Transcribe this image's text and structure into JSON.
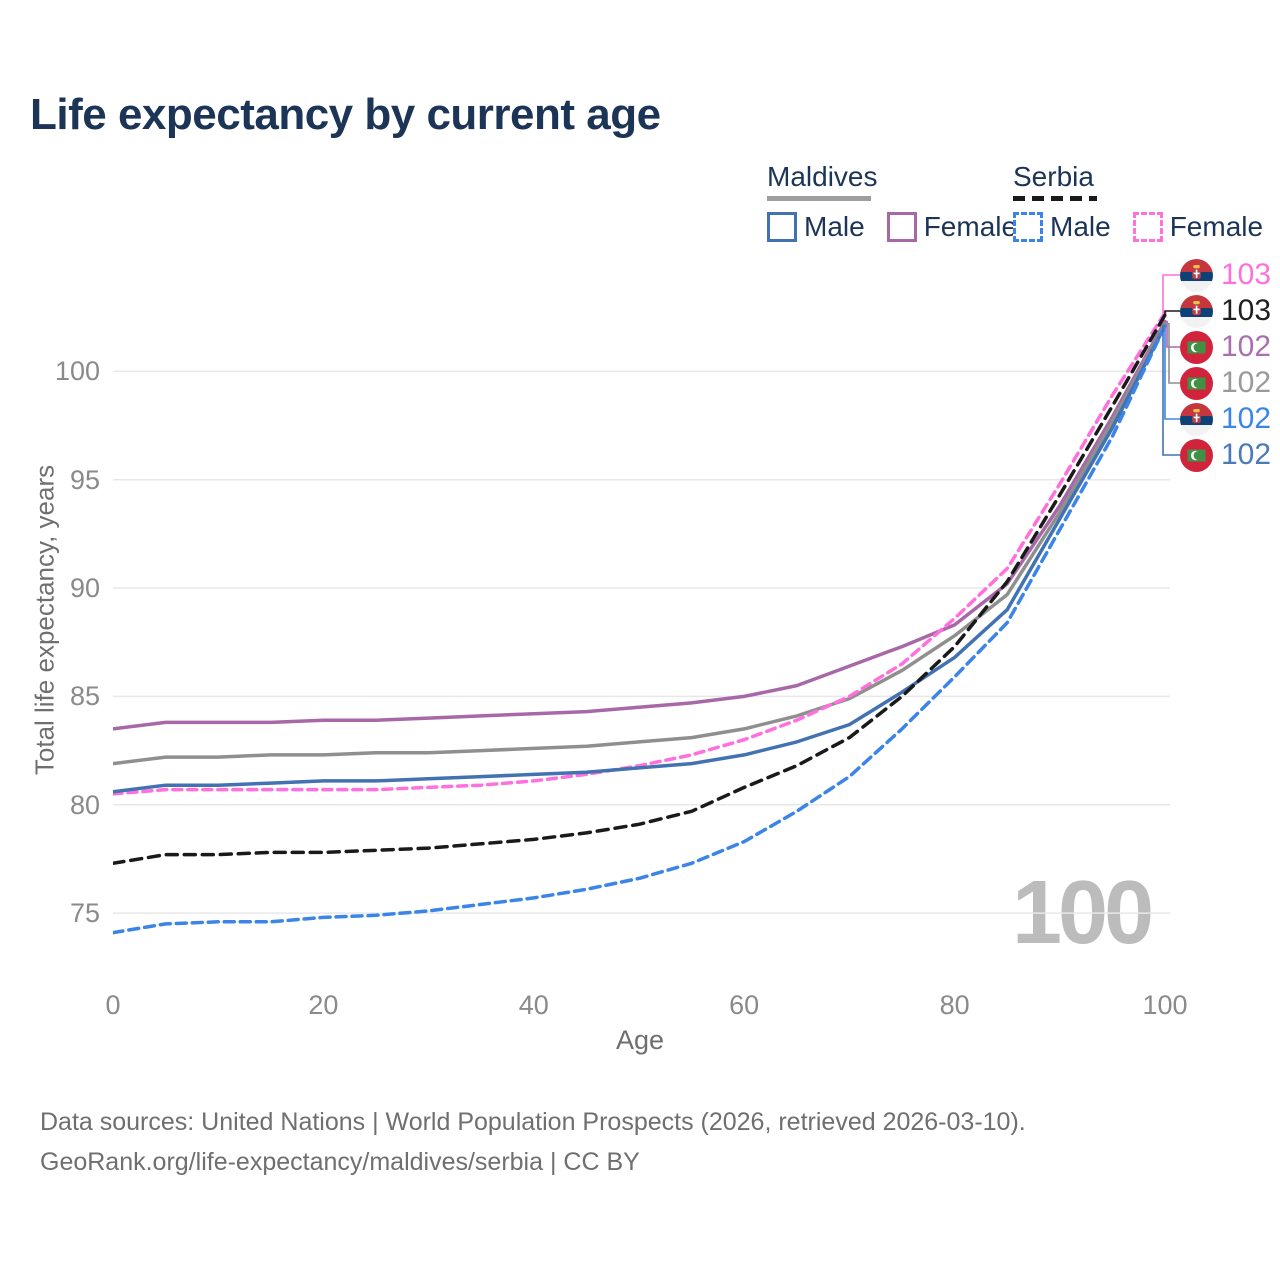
{
  "title": "Life expectancy by current age",
  "watermark": "100",
  "legend": {
    "groups": [
      {
        "country": "Maldives",
        "line_style": "solid",
        "line_color": "#9e9e9e",
        "items": [
          {
            "label": "Male",
            "color": "#4272b2",
            "style": "solid"
          },
          {
            "label": "Female",
            "color": "#a868a8",
            "style": "solid"
          }
        ]
      },
      {
        "country": "Serbia",
        "line_style": "dashed",
        "line_color": "#1a1a1a",
        "items": [
          {
            "label": "Male",
            "color": "#3c85e8",
            "style": "dashed"
          },
          {
            "label": "Female",
            "color": "#ff70dd",
            "style": "dashed"
          }
        ]
      }
    ]
  },
  "chart_data": {
    "type": "line",
    "title": "Life expectancy by current age",
    "xlabel": "Age",
    "ylabel": "Total life expectancy, years",
    "x_ticks": [
      0,
      20,
      40,
      60,
      80,
      100
    ],
    "y_ticks": [
      75,
      80,
      85,
      90,
      95,
      100
    ],
    "xlim": [
      0,
      100
    ],
    "ylim": [
      73,
      104
    ],
    "grid": "horizontal",
    "legend_position": "top-right",
    "x": [
      0,
      5,
      10,
      15,
      20,
      25,
      30,
      35,
      40,
      45,
      50,
      55,
      60,
      65,
      70,
      75,
      80,
      85,
      90,
      95,
      100
    ],
    "series": [
      {
        "name": "Maldives Female",
        "country": "Maldives",
        "sex": "Female",
        "color": "#a868a8",
        "dash": null,
        "end_label": "102",
        "flag": "maldives",
        "values": [
          83.5,
          83.8,
          83.8,
          83.8,
          83.9,
          83.9,
          84.0,
          84.1,
          84.2,
          84.3,
          84.5,
          84.7,
          85.0,
          85.5,
          86.4,
          87.3,
          88.3,
          90.2,
          93.8,
          97.9,
          102.3
        ]
      },
      {
        "name": "Maldives Total",
        "country": "Maldives",
        "sex": "Both",
        "color": "#8f8f8f",
        "dash": null,
        "end_label": "102",
        "flag": "maldives",
        "values": [
          81.9,
          82.2,
          82.2,
          82.3,
          82.3,
          82.4,
          82.4,
          82.5,
          82.6,
          82.7,
          82.9,
          83.1,
          83.5,
          84.1,
          84.9,
          86.2,
          87.8,
          89.7,
          93.5,
          97.7,
          102.2
        ]
      },
      {
        "name": "Serbia Female",
        "country": "Serbia",
        "sex": "Female",
        "color": "#ff70dd",
        "dash": [
          9,
          6
        ],
        "end_label": "103",
        "flag": "serbia",
        "values": [
          80.5,
          80.7,
          80.7,
          80.7,
          80.7,
          80.7,
          80.8,
          80.9,
          81.1,
          81.4,
          81.8,
          82.3,
          83.0,
          83.9,
          85.0,
          86.5,
          88.6,
          90.9,
          94.8,
          98.9,
          102.7
        ]
      },
      {
        "name": "Maldives Male",
        "country": "Maldives",
        "sex": "Male",
        "color": "#4272b2",
        "dash": null,
        "end_label": "102",
        "flag": "maldives",
        "values": [
          80.6,
          80.9,
          80.9,
          81.0,
          81.1,
          81.1,
          81.2,
          81.3,
          81.4,
          81.5,
          81.7,
          81.9,
          82.3,
          82.9,
          83.7,
          85.2,
          86.8,
          89.0,
          93.2,
          97.4,
          102.1
        ]
      },
      {
        "name": "Serbia Total",
        "country": "Serbia",
        "sex": "Both",
        "color": "#1a1a1a",
        "dash": [
          11,
          7
        ],
        "end_label": "103",
        "flag": "serbia",
        "values": [
          77.3,
          77.7,
          77.7,
          77.8,
          77.8,
          77.9,
          78.0,
          78.2,
          78.4,
          78.7,
          79.1,
          79.7,
          80.8,
          81.8,
          83.1,
          85.0,
          87.3,
          90.3,
          94.3,
          98.4,
          102.6
        ]
      },
      {
        "name": "Serbia Male",
        "country": "Serbia",
        "sex": "Male",
        "color": "#3c85e8",
        "dash": [
          10,
          6
        ],
        "end_label": "102",
        "flag": "serbia",
        "values": [
          74.1,
          74.5,
          74.6,
          74.6,
          74.8,
          74.9,
          75.1,
          75.4,
          75.7,
          76.1,
          76.6,
          77.3,
          78.3,
          79.7,
          81.3,
          83.5,
          85.9,
          88.4,
          92.7,
          97.0,
          102.1
        ]
      }
    ]
  },
  "end_labels": [
    {
      "series": "Serbia Female",
      "flag": "serbia",
      "value": "103",
      "color": "#ff70dd"
    },
    {
      "series": "Serbia Total",
      "flag": "serbia",
      "value": "103",
      "color": "#1f1f1f"
    },
    {
      "series": "Maldives Female",
      "flag": "maldives",
      "value": "102",
      "color": "#aa6fb0"
    },
    {
      "series": "Maldives Total",
      "flag": "maldives",
      "value": "102",
      "color": "#9a9a9a"
    },
    {
      "series": "Serbia Male",
      "flag": "serbia",
      "value": "102",
      "color": "#3c85e8"
    },
    {
      "series": "Maldives Male",
      "flag": "maldives",
      "value": "102",
      "color": "#4a7ab8"
    }
  ],
  "footer": {
    "line1": "Data sources: United Nations | World Population Prospects (2026, retrieved 2026-03-10).",
    "line2": "GeoRank.org/life-expectancy/maldives/serbia | CC BY"
  }
}
